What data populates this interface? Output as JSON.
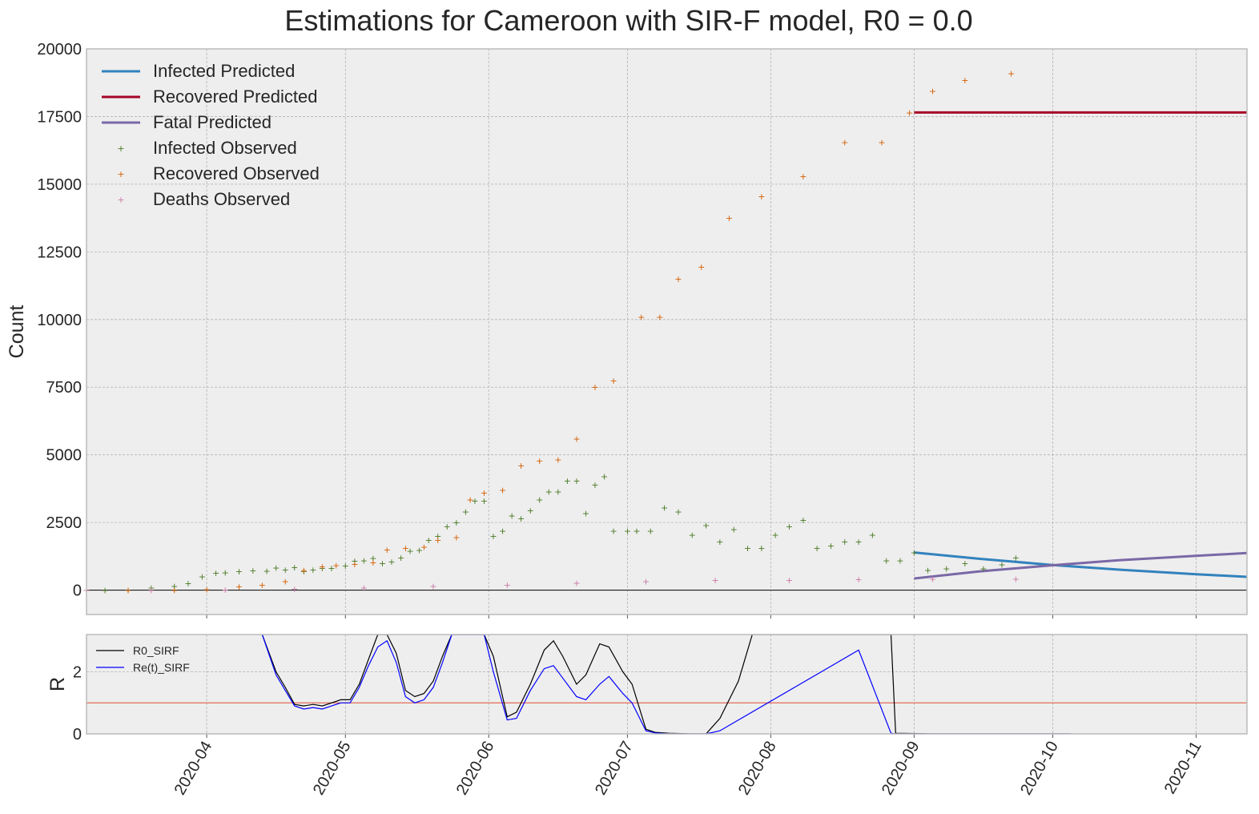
{
  "chart_data": [
    {
      "type": "line",
      "title": "Estimations for Cameroon with SIR-F model, R0 = 0.0",
      "xlabel": "",
      "ylabel": "Count",
      "xlim": [
        "2020-03-06",
        "2020-11-12"
      ],
      "ylim": [
        -900,
        20000
      ],
      "yticks": [
        0,
        2500,
        5000,
        7500,
        10000,
        12500,
        15000,
        17500,
        20000
      ],
      "grid": true,
      "legend_position": "top-left",
      "series": [
        {
          "name": "Infected Predicted",
          "kind": "line",
          "color": "#3282bd",
          "x": [
            "2020-09-01",
            "2020-09-15",
            "2020-10-01",
            "2020-10-15",
            "2020-11-01",
            "2020-11-12"
          ],
          "values": [
            1390,
            1160,
            930,
            760,
            590,
            490
          ]
        },
        {
          "name": "Recovered Predicted",
          "kind": "line",
          "color": "#a60628",
          "x": [
            "2020-09-01",
            "2020-11-12"
          ],
          "values": [
            17650,
            17650
          ]
        },
        {
          "name": "Fatal Predicted",
          "kind": "line",
          "color": "#7a68a6",
          "x": [
            "2020-09-01",
            "2020-09-15",
            "2020-10-01",
            "2020-10-15",
            "2020-11-01",
            "2020-11-12"
          ],
          "values": [
            430,
            690,
            920,
            1100,
            1270,
            1370
          ]
        },
        {
          "name": "Infected Observed",
          "kind": "scatter",
          "color": "#467821",
          "x": [
            "2020-03-06",
            "2020-03-10",
            "2020-03-15",
            "2020-03-20",
            "2020-03-25",
            "2020-03-28",
            "2020-03-31",
            "2020-04-03",
            "2020-04-05",
            "2020-04-08",
            "2020-04-11",
            "2020-04-14",
            "2020-04-16",
            "2020-04-18",
            "2020-04-20",
            "2020-04-22",
            "2020-04-24",
            "2020-04-26",
            "2020-04-28",
            "2020-05-01",
            "2020-05-03",
            "2020-05-05",
            "2020-05-07",
            "2020-05-09",
            "2020-05-11",
            "2020-05-13",
            "2020-05-15",
            "2020-05-17",
            "2020-05-19",
            "2020-05-21",
            "2020-05-23",
            "2020-05-25",
            "2020-05-27",
            "2020-05-29",
            "2020-05-31",
            "2020-06-02",
            "2020-06-04",
            "2020-06-06",
            "2020-06-08",
            "2020-06-10",
            "2020-06-12",
            "2020-06-14",
            "2020-06-16",
            "2020-06-18",
            "2020-06-20",
            "2020-06-22",
            "2020-06-24",
            "2020-06-26",
            "2020-06-28",
            "2020-07-01",
            "2020-07-03",
            "2020-07-06",
            "2020-07-09",
            "2020-07-12",
            "2020-07-15",
            "2020-07-18",
            "2020-07-21",
            "2020-07-24",
            "2020-07-27",
            "2020-07-30",
            "2020-08-02",
            "2020-08-05",
            "2020-08-08",
            "2020-08-11",
            "2020-08-14",
            "2020-08-17",
            "2020-08-20",
            "2020-08-23",
            "2020-08-26",
            "2020-08-29",
            "2020-09-01",
            "2020-09-04",
            "2020-09-08",
            "2020-09-12",
            "2020-09-16",
            "2020-09-20",
            "2020-09-23"
          ],
          "values": [
            0,
            0,
            10,
            90,
            150,
            250,
            500,
            640,
            660,
            700,
            730,
            720,
            830,
            760,
            850,
            700,
            760,
            820,
            820,
            900,
            1080,
            1100,
            1180,
            1000,
            1050,
            1200,
            1450,
            1480,
            1850,
            2000,
            2350,
            2500,
            2900,
            3300,
            3300,
            2000,
            2200,
            2750,
            2650,
            2950,
            3350,
            3650,
            3650,
            4050,
            4050,
            2850,
            3900,
            4200,
            2200,
            2200,
            2200,
            2200,
            3050,
            2900,
            2050,
            2400,
            1800,
            2250,
            1550,
            1550,
            2050,
            2350,
            2600,
            1550,
            1650,
            1800,
            1800,
            2050,
            1100,
            1100,
            1400,
            750,
            800,
            1000,
            800,
            950,
            1200
          ]
        },
        {
          "name": "Recovered Observed",
          "kind": "scatter",
          "color": "#d55e00",
          "x": [
            "2020-03-06",
            "2020-03-15",
            "2020-03-25",
            "2020-04-01",
            "2020-04-08",
            "2020-04-13",
            "2020-04-18",
            "2020-04-22",
            "2020-04-26",
            "2020-04-29",
            "2020-05-03",
            "2020-05-07",
            "2020-05-10",
            "2020-05-14",
            "2020-05-18",
            "2020-05-21",
            "2020-05-25",
            "2020-05-28",
            "2020-05-31",
            "2020-06-04",
            "2020-06-08",
            "2020-06-12",
            "2020-06-16",
            "2020-06-20",
            "2020-06-24",
            "2020-06-28",
            "2020-07-04",
            "2020-07-08",
            "2020-07-12",
            "2020-07-17",
            "2020-07-23",
            "2020-07-30",
            "2020-08-08",
            "2020-08-17",
            "2020-08-25",
            "2020-08-31",
            "2020-09-05",
            "2020-09-12",
            "2020-09-22"
          ],
          "values": [
            0,
            0,
            0,
            30,
            130,
            200,
            330,
            750,
            880,
            920,
            960,
            1030,
            1500,
            1560,
            1600,
            1860,
            1950,
            3350,
            3600,
            3700,
            4600,
            4780,
            4830,
            5600,
            7500,
            7750,
            10100,
            10100,
            11500,
            11950,
            13750,
            14550,
            15300,
            16550,
            16550,
            17650,
            18450,
            18850,
            19100
          ]
        },
        {
          "name": "Deaths Observed",
          "kind": "scatter",
          "color": "#cc79a7",
          "x": [
            "2020-03-06",
            "2020-03-20",
            "2020-04-05",
            "2020-04-20",
            "2020-05-05",
            "2020-05-20",
            "2020-06-05",
            "2020-06-20",
            "2020-07-05",
            "2020-07-20",
            "2020-08-05",
            "2020-08-20",
            "2020-09-05",
            "2020-09-23"
          ],
          "values": [
            0,
            5,
            20,
            50,
            90,
            150,
            200,
            270,
            330,
            370,
            380,
            400,
            415,
            415
          ]
        }
      ]
    },
    {
      "type": "line",
      "title": "",
      "xlabel": "",
      "ylabel": "R",
      "xlim": [
        "2020-03-06",
        "2020-11-12"
      ],
      "ylim": [
        0,
        3.2
      ],
      "yticks": [
        0,
        2
      ],
      "xticks": [
        "2020-04",
        "2020-05",
        "2020-06",
        "2020-07",
        "2020-08",
        "2020-09",
        "2020-10",
        "2020-11"
      ],
      "grid": true,
      "legend_position": "top-left",
      "reference_line": {
        "y": 1,
        "color": "#e24a33"
      },
      "series": [
        {
          "name": "R0_SIRF",
          "color": "#000000",
          "x": [
            "2020-04-13",
            "2020-04-16",
            "2020-04-18",
            "2020-04-20",
            "2020-04-22",
            "2020-04-24",
            "2020-04-26",
            "2020-04-28",
            "2020-04-30",
            "2020-05-02",
            "2020-05-04",
            "2020-05-06",
            "2020-05-08",
            "2020-05-10",
            "2020-05-12",
            "2020-05-14",
            "2020-05-16",
            "2020-05-18",
            "2020-05-20",
            "2020-05-22",
            "2020-05-24",
            "2020-05-31",
            "2020-06-02",
            "2020-06-05",
            "2020-06-07",
            "2020-06-10",
            "2020-06-13",
            "2020-06-15",
            "2020-06-17",
            "2020-06-20",
            "2020-06-22",
            "2020-06-25",
            "2020-06-27",
            "2020-06-30",
            "2020-07-02",
            "2020-07-05",
            "2020-07-07",
            "2020-07-10",
            "2020-07-15",
            "2020-07-18",
            "2020-07-21",
            "2020-07-25",
            "2020-07-28",
            "2020-07-29",
            "2020-08-27",
            "2020-08-28",
            "2020-09-05",
            "2020-10-05"
          ],
          "values": [
            3.2,
            2.0,
            1.5,
            0.95,
            0.9,
            0.95,
            0.9,
            1.0,
            1.1,
            1.1,
            1.6,
            2.4,
            3.2,
            3.2,
            2.6,
            1.4,
            1.2,
            1.3,
            1.7,
            2.5,
            3.2,
            3.2,
            2.5,
            0.55,
            0.7,
            1.6,
            2.7,
            3.0,
            2.5,
            1.6,
            1.9,
            2.9,
            2.8,
            2.0,
            1.6,
            0.15,
            0.05,
            0.02,
            0.0,
            0.0,
            0.5,
            1.7,
            3.2,
            3.2,
            3.2,
            0.02,
            0.0,
            0.0
          ]
        },
        {
          "name": "Re(t)_SIRF",
          "color": "#0000ff",
          "x": [
            "2020-04-13",
            "2020-04-16",
            "2020-04-18",
            "2020-04-20",
            "2020-04-22",
            "2020-04-24",
            "2020-04-26",
            "2020-04-28",
            "2020-04-30",
            "2020-05-02",
            "2020-05-04",
            "2020-05-06",
            "2020-05-08",
            "2020-05-10",
            "2020-05-12",
            "2020-05-14",
            "2020-05-16",
            "2020-05-18",
            "2020-05-20",
            "2020-05-22",
            "2020-05-24",
            "2020-05-31",
            "2020-06-02",
            "2020-06-05",
            "2020-06-07",
            "2020-06-10",
            "2020-06-13",
            "2020-06-15",
            "2020-06-17",
            "2020-06-20",
            "2020-06-22",
            "2020-06-25",
            "2020-06-27",
            "2020-06-30",
            "2020-07-02",
            "2020-07-05",
            "2020-07-07",
            "2020-07-10",
            "2020-07-15",
            "2020-07-18",
            "2020-07-21",
            "2020-08-20",
            "2020-08-27",
            "2020-08-28",
            "2020-09-05",
            "2020-10-05"
          ],
          "values": [
            3.2,
            1.9,
            1.4,
            0.9,
            0.8,
            0.85,
            0.8,
            0.9,
            1.0,
            1.0,
            1.5,
            2.2,
            2.8,
            3.0,
            2.3,
            1.2,
            1.0,
            1.1,
            1.5,
            2.3,
            3.2,
            3.2,
            2.0,
            0.45,
            0.5,
            1.4,
            2.1,
            2.2,
            1.8,
            1.2,
            1.1,
            1.6,
            1.85,
            1.3,
            1.0,
            0.1,
            0.03,
            0.0,
            0.0,
            0.0,
            0.1,
            2.7,
            0.02,
            0.0,
            0.0,
            0.0
          ]
        }
      ]
    }
  ]
}
